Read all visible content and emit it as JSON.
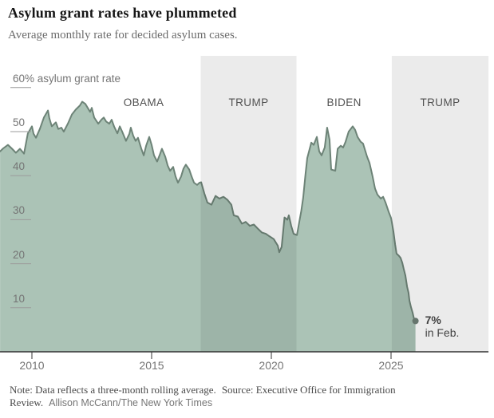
{
  "chart_data": {
    "type": "area",
    "title": "Asylum grant rates have plummeted",
    "subtitle": "Average monthly rate for decided asylum cases.",
    "ylabel": "asylum grant rate",
    "xlim": [
      2008.67,
      2029.07
    ],
    "ylim": [
      0,
      67
    ],
    "grid": "left-tick-stubs-only",
    "x_ticks": [
      2010,
      2015,
      2020,
      2025
    ],
    "y_ticks": [
      10,
      20,
      30,
      40,
      50
    ],
    "y_top_tick": {
      "value": 60,
      "label": "60% asylum grant rate"
    },
    "eras": [
      {
        "label": "OBAMA",
        "start": 2008.67,
        "end": 2017.05,
        "shaded": false,
        "label_year": 2014.67
      },
      {
        "label": "TRUMP",
        "start": 2017.05,
        "end": 2021.05,
        "shaded": true,
        "label_year": 2019.05
      },
      {
        "label": "BIDEN",
        "start": 2021.05,
        "end": 2025.03,
        "shaded": false,
        "label_year": 2023.04
      },
      {
        "label": "TRUMP",
        "start": 2025.03,
        "end": 2029.07,
        "shaded": true,
        "label_year": 2027.05
      }
    ],
    "annotation": {
      "x": 2026.02,
      "y": 7,
      "label": "7%",
      "sublabel": "in Feb."
    },
    "points": [
      [
        2008.67,
        45.5
      ],
      [
        2008.8,
        46.2
      ],
      [
        2009.0,
        47.0
      ],
      [
        2009.17,
        46.1
      ],
      [
        2009.33,
        45.2
      ],
      [
        2009.5,
        46.1
      ],
      [
        2009.67,
        45.0
      ],
      [
        2009.83,
        49.6
      ],
      [
        2010.0,
        51.2
      ],
      [
        2010.07,
        49.5
      ],
      [
        2010.17,
        48.6
      ],
      [
        2010.33,
        50.6
      ],
      [
        2010.5,
        53.2
      ],
      [
        2010.67,
        54.8
      ],
      [
        2010.73,
        53.0
      ],
      [
        2010.83,
        51.2
      ],
      [
        2011.0,
        52.1
      ],
      [
        2011.1,
        50.6
      ],
      [
        2011.23,
        50.9
      ],
      [
        2011.33,
        50.0
      ],
      [
        2011.5,
        51.8
      ],
      [
        2011.67,
        53.9
      ],
      [
        2011.83,
        55.0
      ],
      [
        2012.0,
        55.9
      ],
      [
        2012.1,
        56.8
      ],
      [
        2012.23,
        56.3
      ],
      [
        2012.33,
        55.4
      ],
      [
        2012.43,
        54.5
      ],
      [
        2012.5,
        55.4
      ],
      [
        2012.6,
        53.2
      ],
      [
        2012.77,
        51.8
      ],
      [
        2012.9,
        52.7
      ],
      [
        2013.0,
        53.2
      ],
      [
        2013.1,
        52.3
      ],
      [
        2013.23,
        51.8
      ],
      [
        2013.33,
        52.7
      ],
      [
        2013.43,
        51.2
      ],
      [
        2013.57,
        49.6
      ],
      [
        2013.67,
        51.2
      ],
      [
        2013.77,
        50.0
      ],
      [
        2013.93,
        47.9
      ],
      [
        2014.07,
        49.5
      ],
      [
        2014.13,
        50.9
      ],
      [
        2014.23,
        49.1
      ],
      [
        2014.33,
        47.9
      ],
      [
        2014.43,
        48.6
      ],
      [
        2014.57,
        46.1
      ],
      [
        2014.67,
        44.6
      ],
      [
        2014.77,
        46.8
      ],
      [
        2014.9,
        48.8
      ],
      [
        2015.0,
        47.0
      ],
      [
        2015.1,
        44.6
      ],
      [
        2015.23,
        43.2
      ],
      [
        2015.33,
        44.6
      ],
      [
        2015.43,
        46.1
      ],
      [
        2015.57,
        44.3
      ],
      [
        2015.67,
        42.3
      ],
      [
        2015.77,
        41.1
      ],
      [
        2015.9,
        42.0
      ],
      [
        2016.0,
        39.8
      ],
      [
        2016.1,
        38.4
      ],
      [
        2016.23,
        39.8
      ],
      [
        2016.33,
        41.6
      ],
      [
        2016.43,
        42.5
      ],
      [
        2016.57,
        41.4
      ],
      [
        2016.67,
        39.8
      ],
      [
        2016.77,
        38.4
      ],
      [
        2016.9,
        37.9
      ],
      [
        2017.0,
        38.4
      ],
      [
        2017.07,
        38.5
      ],
      [
        2017.2,
        36.0
      ],
      [
        2017.33,
        33.9
      ],
      [
        2017.5,
        33.4
      ],
      [
        2017.67,
        35.4
      ],
      [
        2017.83,
        34.8
      ],
      [
        2018.0,
        35.2
      ],
      [
        2018.17,
        34.5
      ],
      [
        2018.33,
        33.4
      ],
      [
        2018.43,
        31.0
      ],
      [
        2018.6,
        30.7
      ],
      [
        2018.77,
        29.1
      ],
      [
        2018.93,
        29.5
      ],
      [
        2019.1,
        28.6
      ],
      [
        2019.27,
        28.9
      ],
      [
        2019.43,
        28.0
      ],
      [
        2019.6,
        27.1
      ],
      [
        2019.77,
        26.8
      ],
      [
        2019.93,
        26.2
      ],
      [
        2020.1,
        25.6
      ],
      [
        2020.27,
        24.1
      ],
      [
        2020.33,
        22.6
      ],
      [
        2020.43,
        23.8
      ],
      [
        2020.55,
        30.5
      ],
      [
        2020.67,
        30.0
      ],
      [
        2020.73,
        31.0
      ],
      [
        2020.83,
        28.6
      ],
      [
        2020.93,
        26.8
      ],
      [
        2021.07,
        26.5
      ],
      [
        2021.15,
        29.0
      ],
      [
        2021.25,
        32.0
      ],
      [
        2021.33,
        35.0
      ],
      [
        2021.43,
        40.5
      ],
      [
        2021.5,
        44.0
      ],
      [
        2021.67,
        47.5
      ],
      [
        2021.77,
        47.0
      ],
      [
        2021.9,
        48.8
      ],
      [
        2022.0,
        45.5
      ],
      [
        2022.1,
        44.6
      ],
      [
        2022.23,
        46.4
      ],
      [
        2022.33,
        50.9
      ],
      [
        2022.43,
        48.2
      ],
      [
        2022.5,
        41.4
      ],
      [
        2022.67,
        41.1
      ],
      [
        2022.77,
        46.1
      ],
      [
        2022.9,
        46.8
      ],
      [
        2023.0,
        46.4
      ],
      [
        2023.1,
        47.7
      ],
      [
        2023.23,
        50.0
      ],
      [
        2023.4,
        51.2
      ],
      [
        2023.5,
        50.4
      ],
      [
        2023.6,
        48.8
      ],
      [
        2023.73,
        47.7
      ],
      [
        2023.83,
        47.3
      ],
      [
        2024.0,
        44.3
      ],
      [
        2024.1,
        42.9
      ],
      [
        2024.23,
        39.8
      ],
      [
        2024.33,
        37.1
      ],
      [
        2024.43,
        35.7
      ],
      [
        2024.57,
        34.8
      ],
      [
        2024.67,
        35.2
      ],
      [
        2024.77,
        33.9
      ],
      [
        2024.9,
        31.8
      ],
      [
        2025.0,
        30.4
      ],
      [
        2025.1,
        27.3
      ],
      [
        2025.17,
        24.4
      ],
      [
        2025.23,
        22.3
      ],
      [
        2025.33,
        21.8
      ],
      [
        2025.4,
        21.3
      ],
      [
        2025.47,
        20.2
      ],
      [
        2025.53,
        18.8
      ],
      [
        2025.6,
        17.3
      ],
      [
        2025.67,
        14.8
      ],
      [
        2025.73,
        13.4
      ],
      [
        2025.77,
        11.6
      ],
      [
        2025.83,
        10.2
      ],
      [
        2025.9,
        8.9
      ],
      [
        2025.95,
        7.7
      ],
      [
        2026.02,
        7.0
      ]
    ],
    "colors": {
      "fill": "#abc3b6",
      "stroke": "#6d8377",
      "band": "#ebebeb",
      "dot": "#66756d",
      "axis": "#333333",
      "y_tick_line": "#9b9b9b",
      "tick_label": "#757575",
      "era_label": "#525252"
    }
  },
  "footnote": {
    "note": "Note: Data reflects a three-month rolling average.",
    "source": "Source: Executive Office for Immigration Review.",
    "credit": "Allison McCann/The New York Times"
  }
}
